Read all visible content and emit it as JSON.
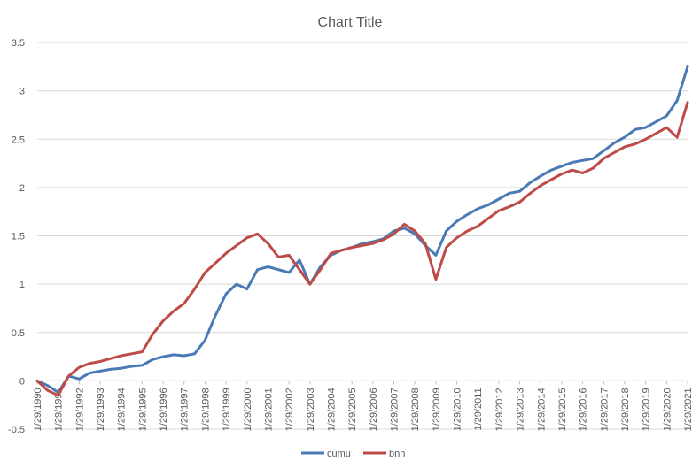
{
  "chart_data": {
    "type": "line",
    "title": "Chart Title",
    "xlabel": "",
    "ylabel": "",
    "ylim": [
      -0.5,
      3.5
    ],
    "y_ticks": [
      -0.5,
      0,
      0.5,
      1,
      1.5,
      2,
      2.5,
      3,
      3.5
    ],
    "y_tick_labels": [
      "-0.5",
      "0",
      "0.5",
      "1",
      "1.5",
      "2",
      "2.5",
      "3",
      "3.5"
    ],
    "x_tick_labels": [
      "1/29/1990",
      "1/29/1991",
      "1/29/1992",
      "1/29/1993",
      "1/29/1994",
      "1/29/1995",
      "1/29/1996",
      "1/29/1997",
      "1/29/1998",
      "1/29/1999",
      "1/29/2000",
      "1/29/2001",
      "1/29/2002",
      "1/29/2003",
      "1/29/2004",
      "1/29/2005",
      "1/29/2006",
      "1/29/2007",
      "1/29/2008",
      "1/29/2009",
      "1/29/2010",
      "1/29/2011",
      "1/29/2012",
      "1/29/2013",
      "1/29/2014",
      "1/29/2015",
      "1/29/2016",
      "1/29/2017",
      "1/29/2018",
      "1/29/2019",
      "1/29/2020",
      "1/29/2021"
    ],
    "x": [
      1990.0,
      1990.5,
      1991.0,
      1991.5,
      1992.0,
      1992.5,
      1993.0,
      1993.5,
      1994.0,
      1994.5,
      1995.0,
      1995.5,
      1996.0,
      1996.5,
      1997.0,
      1997.5,
      1998.0,
      1998.5,
      1999.0,
      1999.5,
      2000.0,
      2000.5,
      2001.0,
      2001.5,
      2002.0,
      2002.5,
      2003.0,
      2003.5,
      2004.0,
      2004.5,
      2005.0,
      2005.5,
      2006.0,
      2006.5,
      2007.0,
      2007.5,
      2008.0,
      2008.5,
      2009.0,
      2009.5,
      2010.0,
      2010.5,
      2011.0,
      2011.5,
      2012.0,
      2012.5,
      2013.0,
      2013.5,
      2014.0,
      2014.5,
      2015.0,
      2015.5,
      2016.0,
      2016.5,
      2017.0,
      2017.5,
      2018.0,
      2018.5,
      2019.0,
      2019.5,
      2020.0,
      2020.5,
      2021.0
    ],
    "series": [
      {
        "name": "cumu",
        "color": "#4a7ab5",
        "values": [
          0.0,
          -0.05,
          -0.12,
          0.05,
          0.02,
          0.08,
          0.1,
          0.12,
          0.13,
          0.15,
          0.16,
          0.22,
          0.25,
          0.27,
          0.26,
          0.28,
          0.42,
          0.68,
          0.9,
          1.0,
          0.95,
          1.15,
          1.18,
          1.15,
          1.12,
          1.25,
          1.0,
          1.18,
          1.3,
          1.35,
          1.38,
          1.42,
          1.44,
          1.47,
          1.55,
          1.58,
          1.52,
          1.4,
          1.3,
          1.55,
          1.65,
          1.72,
          1.78,
          1.82,
          1.88,
          1.94,
          1.96,
          2.05,
          2.12,
          2.18,
          2.22,
          2.26,
          2.28,
          2.3,
          2.38,
          2.46,
          2.52,
          2.6,
          2.62,
          2.68,
          2.74,
          2.9,
          3.25
        ]
      },
      {
        "name": "bnh",
        "color": "#bf4b48",
        "values": [
          0.0,
          -0.1,
          -0.15,
          0.05,
          0.14,
          0.18,
          0.2,
          0.23,
          0.26,
          0.28,
          0.3,
          0.48,
          0.62,
          0.72,
          0.8,
          0.95,
          1.12,
          1.22,
          1.32,
          1.4,
          1.48,
          1.52,
          1.42,
          1.28,
          1.3,
          1.15,
          1.0,
          1.15,
          1.32,
          1.35,
          1.38,
          1.4,
          1.42,
          1.46,
          1.52,
          1.62,
          1.55,
          1.42,
          1.05,
          1.38,
          1.48,
          1.55,
          1.6,
          1.68,
          1.76,
          1.8,
          1.85,
          1.94,
          2.02,
          2.08,
          2.14,
          2.18,
          2.15,
          2.2,
          2.3,
          2.36,
          2.42,
          2.45,
          2.5,
          2.56,
          2.62,
          2.52,
          2.88
        ]
      }
    ],
    "legend_position": "bottom",
    "grid": true
  }
}
